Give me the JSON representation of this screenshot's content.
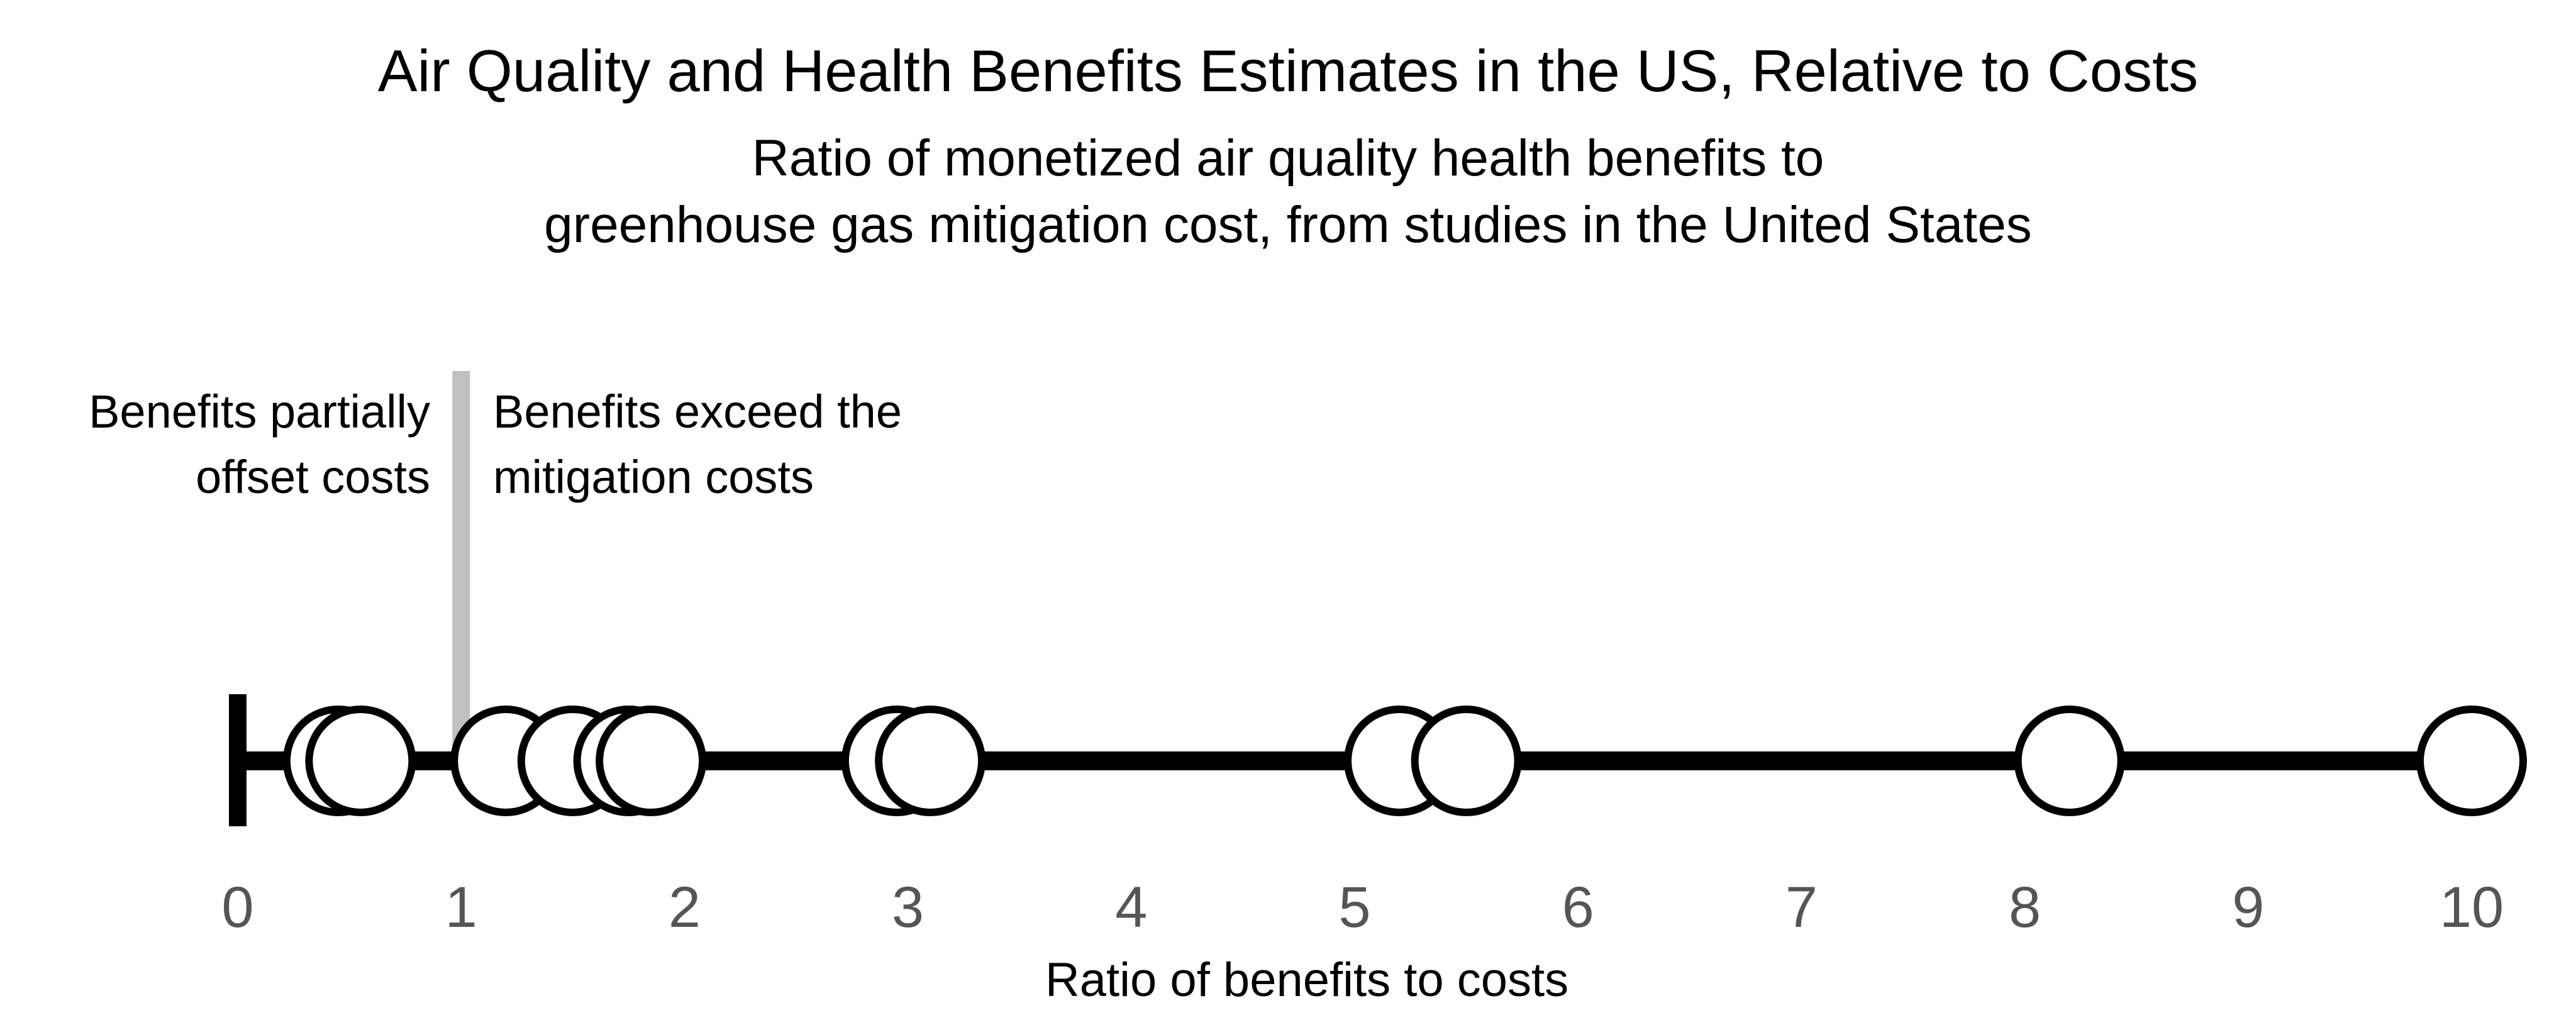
{
  "chart_data": {
    "type": "scatter",
    "title": "Air Quality and Health Benefits Estimates in the US, Relative to Costs",
    "subtitle_lines": [
      "Ratio of monetized air quality health benefits to",
      "greenhouse gas mitigation cost, from studies in the United States"
    ],
    "xlabel": "Ratio of benefits to costs",
    "xlim": [
      0,
      10
    ],
    "x_ticks": [
      0,
      1,
      2,
      3,
      4,
      5,
      6,
      7,
      8,
      9,
      10
    ],
    "grid": false,
    "reference_line": {
      "x": 1
    },
    "region_labels": {
      "left": [
        "Benefits partially",
        "offset costs"
      ],
      "right": [
        "Benefits exceed the",
        "mitigation costs"
      ]
    },
    "values": [
      0.45,
      0.55,
      1.2,
      1.5,
      1.75,
      1.85,
      2.95,
      3.1,
      5.2,
      5.5,
      8.2,
      10.0
    ],
    "colors": {
      "axis_line": "#000000",
      "reference_line": "#c0c0c0",
      "marker_fill": "#ffffff",
      "marker_stroke": "#000000",
      "tick_label": "#555555"
    }
  }
}
